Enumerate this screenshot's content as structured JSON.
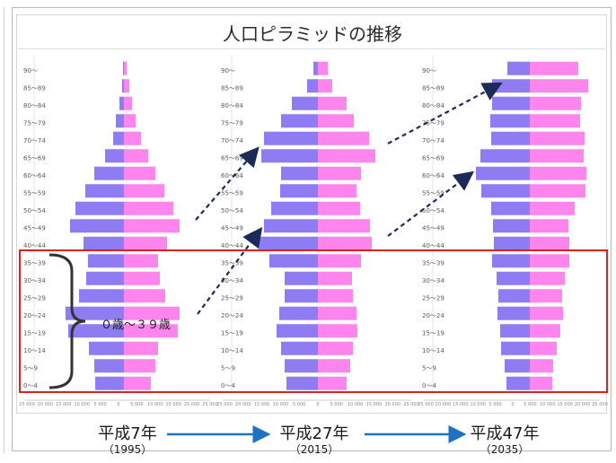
{
  "title": "人口ピラミッドの推移",
  "colors": {
    "male": "#8f7cf2",
    "female": "#ff85ee",
    "highlight_box": "#e0201c",
    "arrow_dashed": "#1b2a58",
    "arrow_solid": "#1e73be",
    "frame": "#b8b8b8"
  },
  "brace_label": "０歳～３９歳",
  "chart_data": [
    {
      "type": "bar",
      "orientation": "horizontal-pyramid",
      "era_label": "平成7年",
      "year_label": "（1995）",
      "age_groups": [
        "0～4",
        "5～9",
        "10～14",
        "15～19",
        "20～24",
        "25～29",
        "30～34",
        "35～39",
        "40～44",
        "45～49",
        "50～54",
        "55～59",
        "60～64",
        "65～69",
        "70～74",
        "75～79",
        "80～84",
        "85～89",
        "90～"
      ],
      "series": [
        {
          "name": "male",
          "values": [
            3.2,
            3.3,
            3.9,
            6.2,
            6.5,
            5.0,
            4.2,
            4.0,
            4.5,
            6.0,
            5.4,
            4.3,
            3.3,
            2.1,
            1.2,
            0.9,
            0.5,
            0.2,
            0.1
          ]
        },
        {
          "name": "female",
          "values": [
            3.0,
            3.5,
            3.8,
            6.0,
            6.2,
            4.6,
            4.0,
            3.8,
            4.8,
            6.2,
            5.5,
            4.5,
            3.5,
            2.7,
            1.9,
            1.3,
            0.9,
            0.6,
            0.3
          ]
        }
      ],
      "axis_ticks": [
        "25 000",
        "20 000",
        "15 000",
        "10 000",
        "5 000",
        "0",
        "5 000",
        "10 000",
        "15 000",
        "20 000",
        "25 000"
      ],
      "xlim": [
        -10.5,
        10.5
      ]
    },
    {
      "type": "bar",
      "orientation": "horizontal-pyramid",
      "era_label": "平成27年",
      "year_label": "（2015）",
      "age_groups": [
        "0～4",
        "5～9",
        "10～14",
        "15～19",
        "20～24",
        "25～29",
        "30～34",
        "35～39",
        "40～44",
        "45～49",
        "50～54",
        "55～59",
        "60～64",
        "65～69",
        "70～74",
        "75～79",
        "80～84",
        "85～89",
        "90～"
      ],
      "series": [
        {
          "name": "male",
          "values": [
            3.5,
            3.7,
            4.1,
            4.6,
            4.3,
            3.7,
            3.7,
            5.4,
            6.6,
            6.0,
            5.2,
            4.2,
            4.1,
            6.3,
            6.0,
            4.1,
            2.9,
            1.2,
            0.5
          ]
        },
        {
          "name": "female",
          "values": [
            3.2,
            3.6,
            3.9,
            4.4,
            4.3,
            3.9,
            3.8,
            4.8,
            6.0,
            5.8,
            4.7,
            4.3,
            4.8,
            6.4,
            5.7,
            4.0,
            3.2,
            1.6,
            1.1
          ]
        }
      ],
      "axis_ticks": [
        "25 000",
        "20 000",
        "15 000",
        "10 000",
        "5 000",
        "0",
        "5 000",
        "10 000",
        "15 000",
        "20 000",
        "25 000"
      ],
      "xlim": [
        -10.5,
        10.5
      ]
    },
    {
      "type": "bar",
      "orientation": "horizontal-pyramid",
      "era_label": "平成47年",
      "year_label": "（2035）",
      "age_groups": [
        "0～4",
        "5～9",
        "10～14",
        "15～19",
        "20～24",
        "25～29",
        "30～34",
        "35～39",
        "40～44",
        "45～49",
        "50～54",
        "55～59",
        "60～64",
        "65～69",
        "70～74",
        "75～79",
        "80～84",
        "85～89",
        "90～"
      ],
      "series": [
        {
          "name": "male",
          "values": [
            2.6,
            2.8,
            3.2,
            3.3,
            3.6,
            3.5,
            3.7,
            4.2,
            4.0,
            4.1,
            4.3,
            5.4,
            6.0,
            5.5,
            4.3,
            4.4,
            4.2,
            4.2,
            2.5
          ]
        },
        {
          "name": "female",
          "values": [
            2.5,
            2.6,
            3.0,
            3.4,
            3.7,
            3.6,
            3.9,
            4.4,
            4.4,
            4.3,
            5.0,
            6.2,
            6.3,
            6.0,
            6.1,
            5.6,
            5.7,
            6.5,
            5.4
          ]
        }
      ],
      "axis_ticks": [
        "25 000",
        "20 000",
        "15 000",
        "10 000",
        "5 000",
        "0",
        "5 000",
        "10 000",
        "15 000",
        "20 000",
        "25 000"
      ],
      "xlim": [
        -10.5,
        10.5
      ]
    }
  ]
}
